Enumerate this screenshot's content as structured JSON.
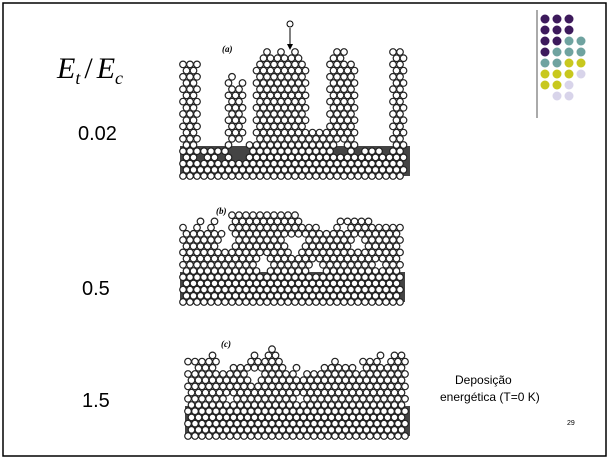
{
  "formula": {
    "numerator_symbol": "E",
    "numerator_subscript": "t",
    "separator": "/",
    "denominator_symbol": "E",
    "denominator_subscript": "c"
  },
  "panels": [
    {
      "label": "(a)",
      "ratio": "0.02"
    },
    {
      "label": "(b)",
      "ratio": "0.5"
    },
    {
      "label": "(c)",
      "ratio": "1.5"
    }
  ],
  "caption": {
    "lines": [
      "Deposição",
      "energética (T=0 K)"
    ]
  },
  "page_number": "29"
}
